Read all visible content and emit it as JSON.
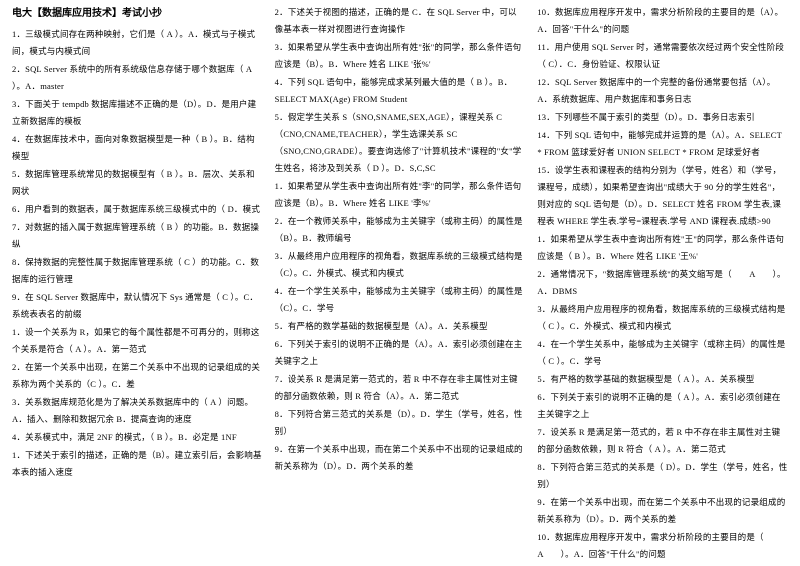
{
  "title": "电大【数据库应用技术】考试小抄",
  "col1": [
    "1．三级模式间存在两种映射，它们是（ A ）。A．模式与子模式间，模式与内模式间",
    "2．SQL Server 系统中的所有系统级信息存储于哪个数据库（ A ）。A．master",
    "3．下面关于 tempdb 数据库描述不正确的是（D）。D．是用户建立新数据库的模板",
    "4．在数据库技术中，面向对象数据模型是一种（ B ）。B．结构模型",
    "5．数据库管理系统常见的数据模型有（ B ）。B．层次、关系和网状",
    "6．用户看到的数据表，属于数据库系统三级模式中的（ D．模式",
    "7．对数据的插入属于数据库管理系统（ B ）的功能。B．数据操纵",
    "8．保持数据的完整性属于数据库管理系统（ C ）的功能。C．数据库的运行管理",
    "9．在 SQL Server 数据库中，默认情况下 Sys 通常是（ C ）。C．系统表表名的前缀",
    "1．设一个关系为 R，如果它的每个属性都是不可再分的，则称这个关系是符合（ A ）。A．第一范式",
    "2．在第一个关系中出现，在第二个关系中不出现的记录组成的关系称为两个关系的（C ）。C．差",
    "3．关系数据库规范化是为了解决关系数据库中的（ A ）问题。A．插入、删除和数据冗余 B．提高查询的速度",
    "4．关系模式中，满足 2NF 的模式，（ B ）。B．必定是 1NF",
    "1．下述关于索引的描述，正确的是（B）。建立索引后，会影响基本表的插入速度"
  ],
  "col2": [
    "2．下述关于视图的描述，正确的是 C．在 SQL Server 中，可以像基本表一样对视图进行查询操作",
    "3．如果希望从学生表中查询出所有姓\"张\"的同学，那么条件语句应该是（B）。B．Where 姓名 LIKE '张%'",
    "4．下列 SQL 语句中，能够完成求某列最大值的是（ B ）。B．SELECT MAX(Age) FROM Student",
    "5．假定学生关系 S（SNO,SNAME,SEX,AGE），课程关系 C（CNO,CNAME,TEACHER），学生选课关系 SC（SNO,CNO,GRADE）。要查询选修了\"计算机技术\"课程的\"女\"学生姓名，将涉及到关系（ D ）。D．S,C,SC",
    "1．如果希望从学生表中查询出所有姓\"李\"的同学，那么条件语句应该是（B）。B．Where 姓名 LIKE '李%'",
    "2．在一个教师关系中，能够成为主关键字（或称主码）的属性是（B）。B．教师编号",
    "3．从最终用户应用程序的视角看，数据库系统的三级模式结构是（C）。C．外模式、模式和内模式",
    "4．在一个学生关系中，能够成为主关键字（或称主码）的属性是（C）。C．学号",
    "5．有严格的数学基础的数据模型是（A）。A．关系模型",
    "6．下列关于索引的说明不正确的是（A）。A．索引必须创建在主关键字之上",
    "7．设关系 R 是满足第一范式的，若 R 中不存在非主属性对主键的部分函数依赖，则 R 符合（A）。A．第二范式",
    "8．下列符合第三范式的关系是（D）。D．学生（学号，姓名，性别）",
    "9．在第一个关系中出现，而在第二个关系中不出现的记录组成的新关系称为（D）。D．两个关系的差"
  ],
  "col3": [
    "10．数据库应用程序开发中，需求分析阶段的主要目的是（A）。A．回答\"干什么\"的问题",
    "11．用户使用 SQL Server 时，通常需要依次经过两个安全性阶段（ C）．C．身份验证、权限认证",
    "12．SQL Server 数据库中的一个完整的备份通常要包括（A）。A．系统数据库、用户数据库和事务日志",
    "13．下列哪些不属于索引的类型（D）。D．事务日志索引",
    "14．下列 SQL 语句中，能够完成并运算的是（A）。A．SELECT * FROM 篮球爱好者 UNION SELECT * FROM 足球爱好者",
    "15．设学生表和课程表的结构分别为（学号，姓名）和（学号，课程号，成绩），如果希望查询出\"成绩大于 90 分的学生姓名\"，则对应的 SQL 语句是（D）。D．SELECT 姓名 FROM 学生表,课程表 WHERE 学生表.学号=课程表.学号 AND 课程表.成绩>90",
    "1．如果希望从学生表中查询出所有姓\"王\"的同学，那么条件语句应该是（ B ）。B．Where 姓名 LIKE '王%'",
    "2．通常情况下，\"数据库管理系统\"的英文缩写是（　　A　　）。A．DBMS",
    "3．从最终用户应用程序的视角看，数据库系统的三级模式结构是（ C ）。C．外模式、模式和内模式",
    "4．在一个学生关系中，能够成为主关键字（或称主码）的属性是（ C ）。C．学号",
    "5．有严格的数学基础的数据模型是（ A ）。A．关系模型",
    "6．下列关于索引的说明不正确的是（ A ）。A．索引必须创建在主关键字之上",
    "7．设关系 R 是满足第一范式的，若 R 中不存在非主属性对主键的部分函数依赖，则 R 符合（ A ）。A．第二范式",
    "8．下列符合第三范式的关系是（ D）。D．学生（学号，姓名，性别）",
    "9．在第一个关系中出现，而在第二个关系中不出现的记录组成的新关系称为（D）。D．两个关系的差",
    "10．数据库应用程序开发中，需求分析阶段的主要目的是（　　A　　）。A．回答\"干什么\"的问题"
  ]
}
